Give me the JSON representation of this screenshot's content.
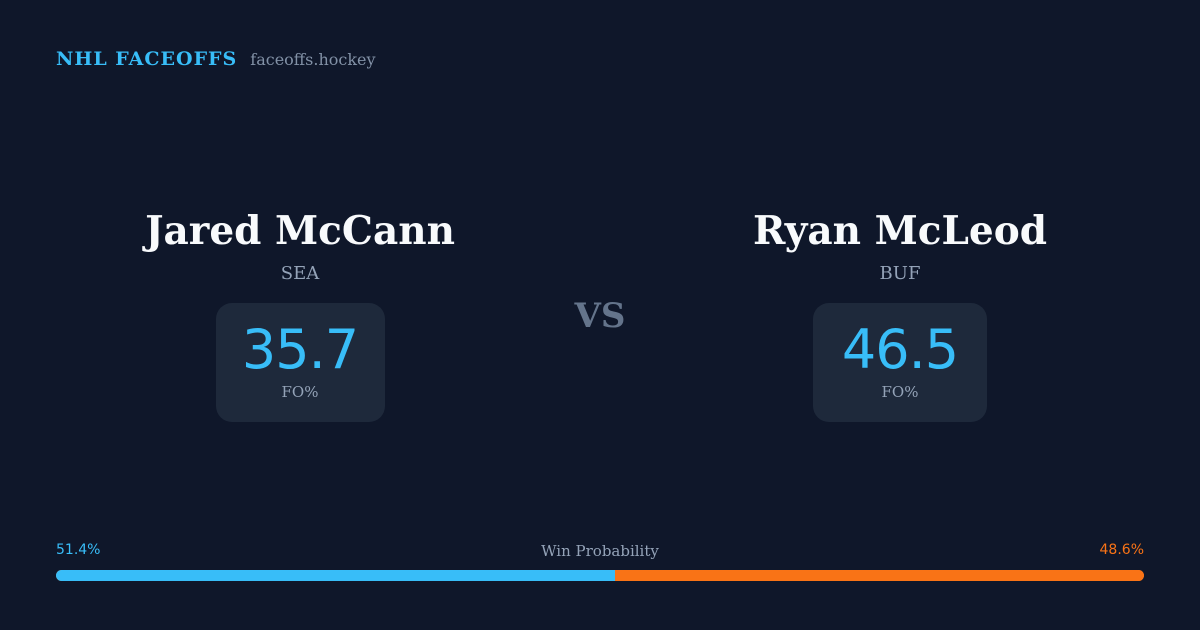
{
  "header": {
    "title": "NHL FACEOFFS",
    "site": "faceoffs.hockey"
  },
  "players": [
    {
      "name": "Jared McCann",
      "team": "SEA",
      "fo_value": "35.7",
      "fo_label": "FO%"
    },
    {
      "name": "Ryan McLeod",
      "team": "BUF",
      "fo_value": "46.5",
      "fo_label": "FO%"
    }
  ],
  "vs_label": "VS",
  "probability": {
    "title": "Win Probability",
    "left_label": "51.4%",
    "right_label": "48.6%",
    "left_fraction": 0.514,
    "left_color": "#38bdf8",
    "right_color": "#f97316"
  }
}
